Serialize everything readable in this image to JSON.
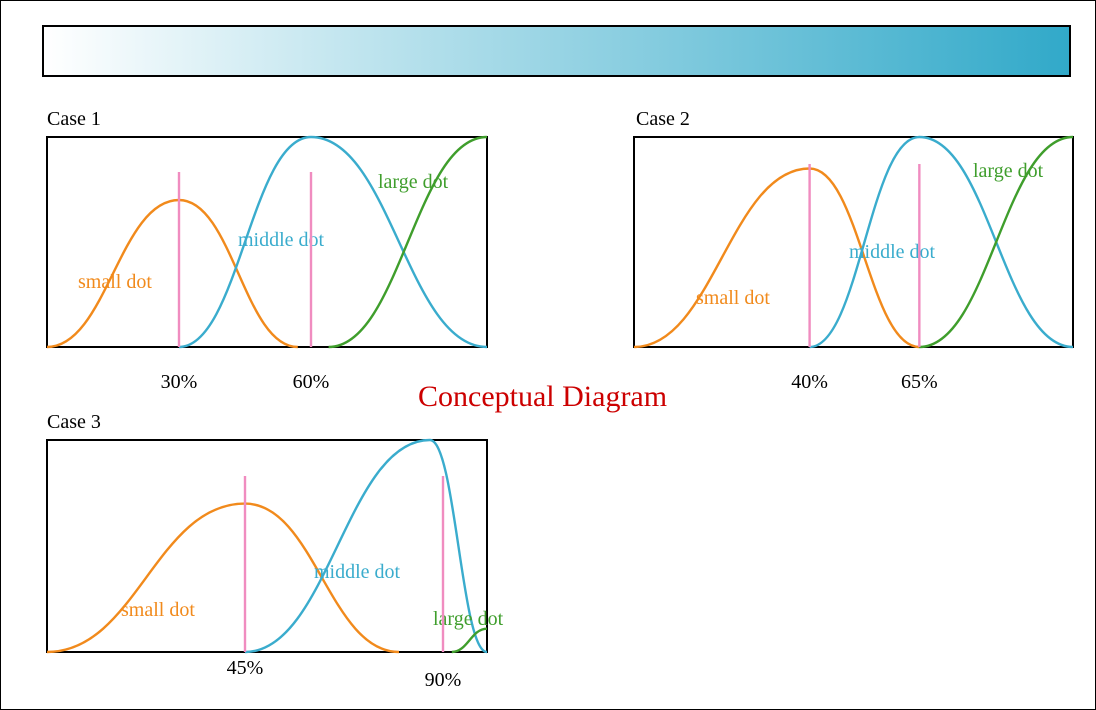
{
  "colors": {
    "small": "#f18a1c",
    "middle": "#3aaccd",
    "large": "#3f9e2c",
    "marker": "#f08cc0",
    "title": "#cc0000"
  },
  "title": "Conceptual Diagram",
  "chart_data": [
    {
      "type": "line",
      "title": "Case 1",
      "markers": [
        0.3,
        0.6
      ],
      "marker_labels": [
        "30%",
        "60%"
      ],
      "series": [
        {
          "name": "small dot",
          "key": "small",
          "x": [
            0.0,
            0.3,
            0.57
          ],
          "peak": [
            0.3,
            0.7
          ]
        },
        {
          "name": "middle dot",
          "key": "middle",
          "x": [
            0.3,
            0.6,
            1.0
          ],
          "peak": [
            0.6,
            1.0
          ]
        },
        {
          "name": "large dot",
          "key": "large",
          "x": [
            0.64,
            1.0
          ],
          "peak": [
            1.0,
            1.0
          ]
        }
      ]
    },
    {
      "type": "line",
      "title": "Case 2",
      "markers": [
        0.4,
        0.65
      ],
      "marker_labels": [
        "40%",
        "65%"
      ],
      "series": [
        {
          "name": "small dot",
          "key": "small",
          "x": [
            0.0,
            0.4,
            0.65
          ],
          "peak": [
            0.4,
            0.85
          ]
        },
        {
          "name": "middle dot",
          "key": "middle",
          "x": [
            0.4,
            0.65,
            1.0
          ],
          "peak": [
            0.65,
            1.0
          ]
        },
        {
          "name": "large dot",
          "key": "large",
          "x": [
            0.65,
            1.0
          ],
          "peak": [
            1.0,
            1.0
          ]
        }
      ]
    },
    {
      "type": "line",
      "title": "Case 3",
      "markers": [
        0.45,
        0.9
      ],
      "marker_labels": [
        "45%",
        "90%"
      ],
      "series": [
        {
          "name": "small dot",
          "key": "small",
          "x": [
            0.0,
            0.45,
            0.8
          ],
          "peak": [
            0.45,
            0.7
          ]
        },
        {
          "name": "middle dot",
          "key": "middle",
          "x": [
            0.45,
            0.87,
            1.0
          ],
          "peak": [
            0.87,
            1.0
          ]
        },
        {
          "name": "large dot",
          "key": "large",
          "x": [
            0.92,
            1.0
          ],
          "peak": [
            1.0,
            0.11
          ]
        }
      ]
    }
  ]
}
